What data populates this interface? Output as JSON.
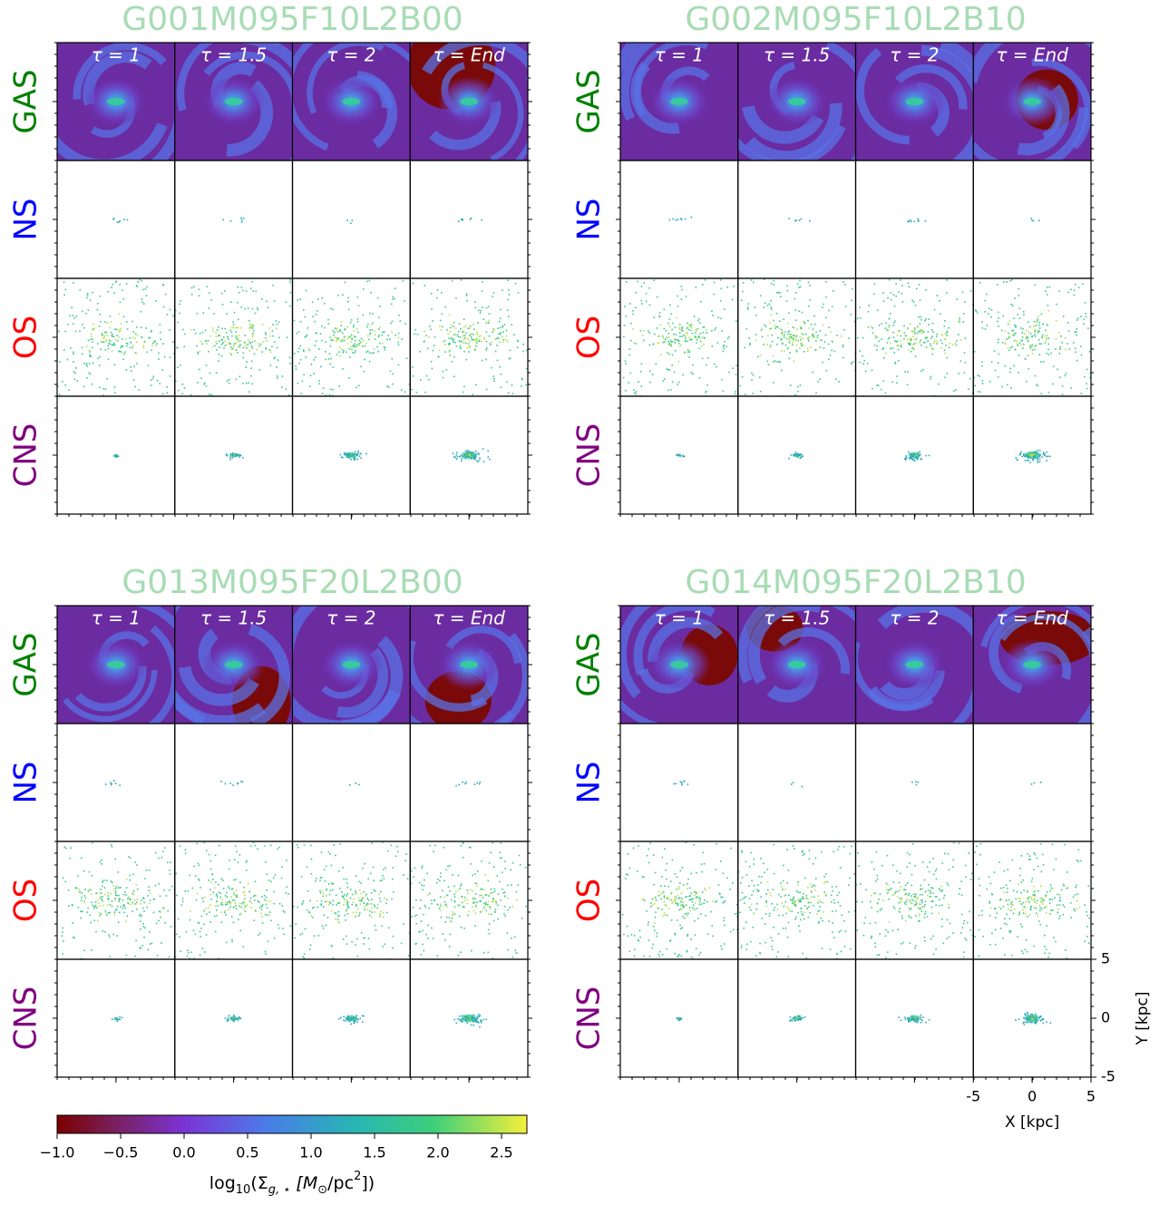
{
  "panels": [
    {
      "title": "G001M095F10L2B00"
    },
    {
      "title": "G002M095F10L2B10"
    },
    {
      "title": "G013M095F20L2B00"
    },
    {
      "title": "G014M095F20L2B10"
    }
  ],
  "columns": [
    "τ = 1",
    "τ = 1.5",
    "τ = 2",
    "τ = End"
  ],
  "rows": [
    {
      "label": "GAS",
      "color": "#008000"
    },
    {
      "label": "NS",
      "color": "#0000ff"
    },
    {
      "label": "OS",
      "color": "#ff0000"
    },
    {
      "label": "CNS",
      "color": "#800080"
    }
  ],
  "x_axis": {
    "label": "X [kpc]",
    "lim": [
      -5,
      5
    ],
    "ticks": [
      -5,
      0,
      5
    ]
  },
  "y_axis": {
    "label": "Y [kpc]",
    "lim": [
      -5,
      5
    ],
    "ticks": [
      -5,
      0,
      5
    ]
  },
  "colorbar": {
    "label": [
      "log",
      "10",
      "(Σ",
      "g, ⋆",
      "  [M",
      "⊙",
      "/pc",
      "2",
      "])"
    ],
    "lim": [
      -1,
      2.7
    ],
    "ticks": [
      {
        "value": -1,
        "label": "−1.0"
      },
      {
        "value": -0.5,
        "label": "−0.5"
      },
      {
        "value": 0,
        "label": "0.0"
      },
      {
        "value": 0.5,
        "label": "0.5"
      },
      {
        "value": 1,
        "label": "1.0"
      },
      {
        "value": 1.5,
        "label": "1.5"
      },
      {
        "value": 2,
        "label": "2.0"
      },
      {
        "value": 2.5,
        "label": "2.5"
      }
    ]
  }
}
